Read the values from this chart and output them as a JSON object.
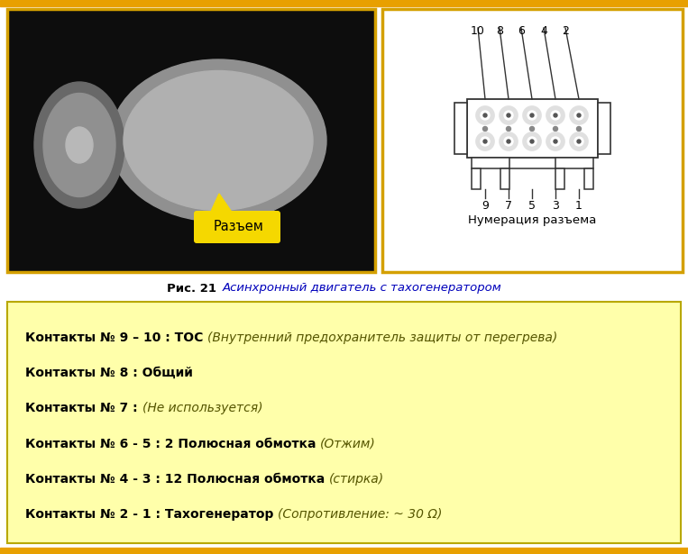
{
  "bg_color": "#ffffff",
  "top_border_color": "#e8a000",
  "bottom_border_color": "#e8a000",
  "left_panel_border": "#d4a000",
  "right_panel_border": "#d4a000",
  "caption_bold": "Рис. 21 ",
  "caption_italic": "Асинхронный двигатель с тахогенератором",
  "caption_italic_color": "#0000bb",
  "info_box_bg": "#ffffaa",
  "info_box_border": "#b8a800",
  "connector_label": "Разъем",
  "connector_label_bg": "#f5d800",
  "numbering_label": "Нумерация разъема",
  "top_numbers": [
    "10",
    "8",
    "6",
    "4",
    "2"
  ],
  "bottom_numbers": [
    "9",
    "7",
    "5",
    "3",
    "1"
  ],
  "lines": [
    {
      "bold_part": "Контакты № 9 – 10 : ТОС ",
      "italic_part": "(Внутренний предохранитель защиты от перегрева)"
    },
    {
      "bold_part": "Контакты № 8 : Общий",
      "italic_part": ""
    },
    {
      "bold_part": "Контакты № 7 : ",
      "italic_part": "(Не используется)"
    },
    {
      "bold_part": "Контакты № 6 - 5 : 2 Полюсная обмотка ",
      "italic_part": "(Отжим)"
    },
    {
      "bold_part": "Контакты № 4 - 3 : 12 Полюсная обмотка ",
      "italic_part": "(стирка)"
    },
    {
      "bold_part": "Контакты № 2 - 1 : Тахогенератор ",
      "italic_part": "(Сопротивление: ~ 30 Ω)"
    }
  ],
  "line_bold_color": "#000000",
  "line_italic_color": "#555500",
  "line_fontsize": 10.0
}
